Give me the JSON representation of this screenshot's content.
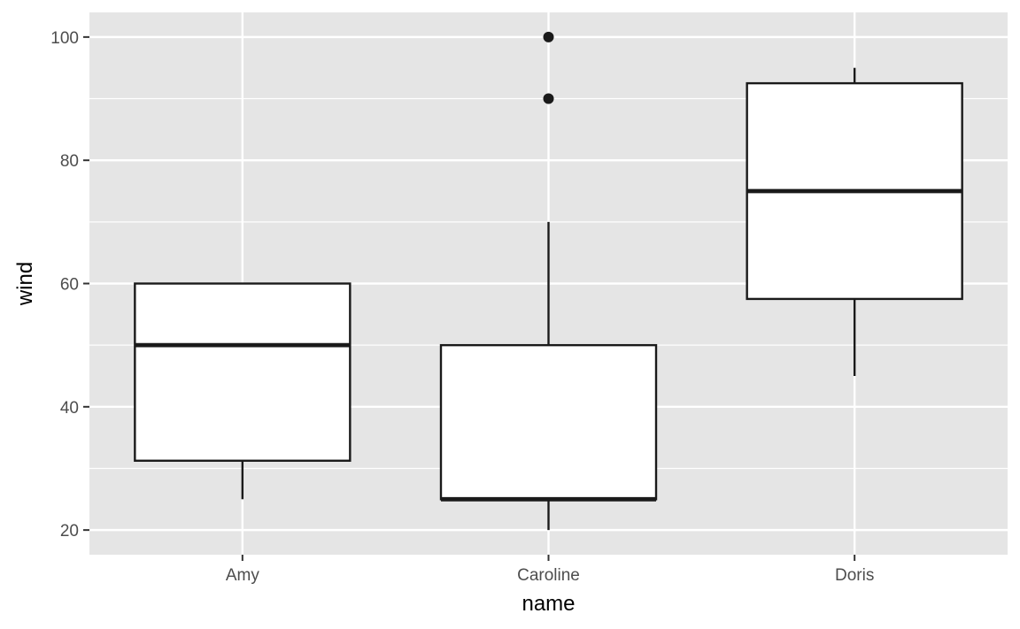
{
  "colors": {
    "panel_background": "#e5e5e5",
    "grid": "#ffffff",
    "box_fill": "#ffffff",
    "box_stroke": "#1a1a1a",
    "outlier": "#1a1a1a",
    "tick_text": "#4d4d4d",
    "axis_title": "#000000"
  },
  "chart_data": {
    "type": "boxplot",
    "title": "",
    "xlabel": "name",
    "ylabel": "wind",
    "categories": [
      "Amy",
      "Caroline",
      "Doris"
    ],
    "ylim": [
      16,
      104
    ],
    "yticks": [
      20,
      40,
      60,
      80,
      100
    ],
    "y_minor_ticks": [
      30,
      50,
      70,
      90
    ],
    "grid": true,
    "legend": "none",
    "boxes": [
      {
        "category": "Amy",
        "whisker_low": 25,
        "q1": 31.25,
        "median": 50,
        "q3": 60,
        "whisker_high": 60,
        "outliers": []
      },
      {
        "category": "Caroline",
        "whisker_low": 20,
        "q1": 25,
        "median": 25,
        "q3": 50,
        "whisker_high": 70,
        "outliers": [
          90,
          100
        ]
      },
      {
        "category": "Doris",
        "whisker_low": 45,
        "q1": 57.5,
        "median": 75,
        "q3": 92.5,
        "whisker_high": 95,
        "outliers": []
      }
    ]
  }
}
